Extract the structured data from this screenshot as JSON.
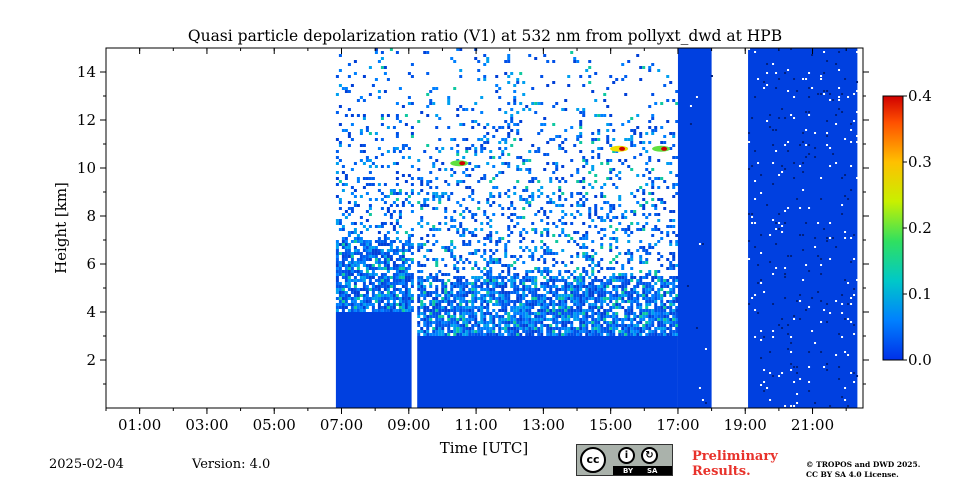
{
  "chart_data": {
    "type": "heatmap",
    "title": "Quasi particle depolarization ratio (V1) at 532 nm from pollyxt_dwd at HPB",
    "xlabel": "Time [UTC]",
    "ylabel": "Height [km]",
    "xlim": [
      "00:00",
      "22:30"
    ],
    "ylim": [
      0,
      15
    ],
    "x_ticks": [
      "01:00",
      "03:00",
      "05:00",
      "07:00",
      "09:00",
      "11:00",
      "13:00",
      "15:00",
      "17:00",
      "19:00",
      "21:00"
    ],
    "y_ticks": [
      2,
      4,
      6,
      8,
      10,
      12,
      14
    ],
    "colorbar": {
      "range": [
        0.0,
        0.4
      ],
      "ticks": [
        "0.0",
        "0.1",
        "0.2",
        "0.3",
        "0.4"
      ],
      "colormap": "jet"
    },
    "background_value": 0.0,
    "data_segments": [
      {
        "start": "06:50",
        "end": "09:05",
        "noisy_above_km": 7.0,
        "dense_below_km": 4.0
      },
      {
        "start": "09:15",
        "end": "17:00",
        "noisy_above_km": 5.5,
        "dense_below_km": 3.0
      },
      {
        "start": "17:00",
        "end": "18:00",
        "noisy_above_km": 15.0,
        "dense_below_km": 15.0
      },
      {
        "start": "19:05",
        "end": "22:20",
        "noisy_above_km": 15.0,
        "dense_below_km": 15.0
      }
    ],
    "gaps": [
      {
        "start": "00:00",
        "end": "06:50"
      },
      {
        "start": "09:05",
        "end": "09:15"
      },
      {
        "start": "18:00",
        "end": "19:05"
      }
    ],
    "cloud_features": [
      {
        "time": "10:30",
        "height_km": 10.2,
        "value": 0.2
      },
      {
        "time": "15:15",
        "height_km": 10.8,
        "value": 0.22
      },
      {
        "time": "16:30",
        "height_km": 10.8,
        "value": 0.2
      }
    ]
  },
  "footer": {
    "date": "2025-02-04",
    "version": "Version: 4.0",
    "preliminary_line1": "Preliminary",
    "preliminary_line2": "Results.",
    "copyright_line1": "© TROPOS and DWD 2025.",
    "copyright_line2": "CC BY SA 4.0 License.",
    "license_badge": {
      "main": "cc",
      "by": "BY",
      "sa": "SA"
    }
  },
  "colors": {
    "low": "#0040e0",
    "mid": "#00c8a0",
    "high": "#e02000"
  }
}
